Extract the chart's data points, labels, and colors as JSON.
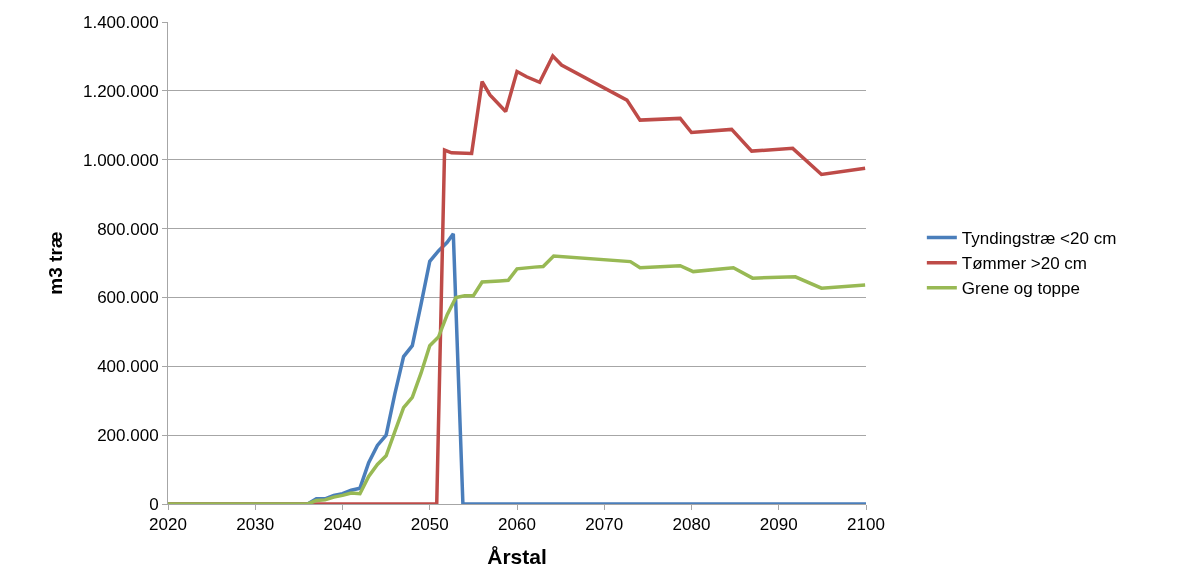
{
  "chart_data": {
    "type": "line",
    "xlabel": "Årstal",
    "ylabel": "m3 træ",
    "xlim": [
      2020,
      2100
    ],
    "xticks": [
      2020,
      2030,
      2040,
      2050,
      2060,
      2070,
      2080,
      2090,
      2100
    ],
    "ylim": [
      0,
      1400000
    ],
    "yticks": [
      {
        "value": 0,
        "label": "0"
      },
      {
        "value": 200000,
        "label": "200.000"
      },
      {
        "value": 400000,
        "label": "400.000"
      },
      {
        "value": 600000,
        "label": "600.000"
      },
      {
        "value": 800000,
        "label": "800.000"
      },
      {
        "value": 1000000,
        "label": "1.000.000"
      },
      {
        "value": 1200000,
        "label": "1.200.000"
      },
      {
        "value": 1400000,
        "label": "1.400.000"
      }
    ],
    "grid": "y",
    "legend": "right",
    "marker": "none",
    "line_style": "solid",
    "series": [
      {
        "name": "Tyndingstræ <20 cm",
        "color": "#4a7ebb",
        "x": [
          2020,
          2036,
          2037,
          2038,
          2039,
          2040,
          2041,
          2042,
          2043,
          2044,
          2045,
          2046,
          2047,
          2048,
          2049,
          2050,
          2051,
          2052,
          2052.7,
          2053.8,
          2100
        ],
        "values": [
          0,
          0,
          15000,
          15000,
          25000,
          30000,
          40000,
          46000,
          120000,
          170000,
          200000,
          320000,
          428000,
          460000,
          580000,
          705000,
          735000,
          760000,
          785000,
          0,
          0
        ]
      },
      {
        "name": "Tømmer >20 cm",
        "color": "#be4b48",
        "x": [
          2020,
          2050.8,
          2051.7,
          2052.5,
          2054.8,
          2056,
          2056.9,
          2058.7,
          2060,
          2061.1,
          2062.6,
          2064.1,
          2065.1,
          2072.6,
          2074.1,
          2078.7,
          2080,
          2084.6,
          2086.9,
          2091.6,
          2094.9,
          2099.9
        ],
        "values": [
          0,
          0,
          1028000,
          1020000,
          1018000,
          1227000,
          1188000,
          1140000,
          1256000,
          1241000,
          1225000,
          1301000,
          1275000,
          1173000,
          1115000,
          1120000,
          1079000,
          1088000,
          1025000,
          1033000,
          957000,
          975000
        ]
      },
      {
        "name": "Grene og toppe",
        "color": "#98b954",
        "x": [
          2020,
          2036,
          2037,
          2038,
          2039,
          2040,
          2041,
          2042,
          2043,
          2044,
          2045,
          2046,
          2047,
          2048,
          2049,
          2050,
          2051,
          2052,
          2053,
          2054,
          2055,
          2056,
          2058,
          2059,
          2060,
          2062,
          2063,
          2064.2,
          2073,
          2074.1,
          2078.7,
          2080.2,
          2084.8,
          2087,
          2091.9,
          2094.9,
          2099.9
        ],
        "values": [
          0,
          0,
          10000,
          12000,
          20000,
          25000,
          32000,
          30000,
          80000,
          115000,
          140000,
          210000,
          280000,
          310000,
          380000,
          460000,
          485000,
          550000,
          600000,
          605000,
          605000,
          645000,
          648000,
          650000,
          683000,
          688000,
          690000,
          720000,
          704000,
          686000,
          692000,
          675000,
          686000,
          656000,
          660000,
          627000,
          636000
        ]
      }
    ]
  }
}
